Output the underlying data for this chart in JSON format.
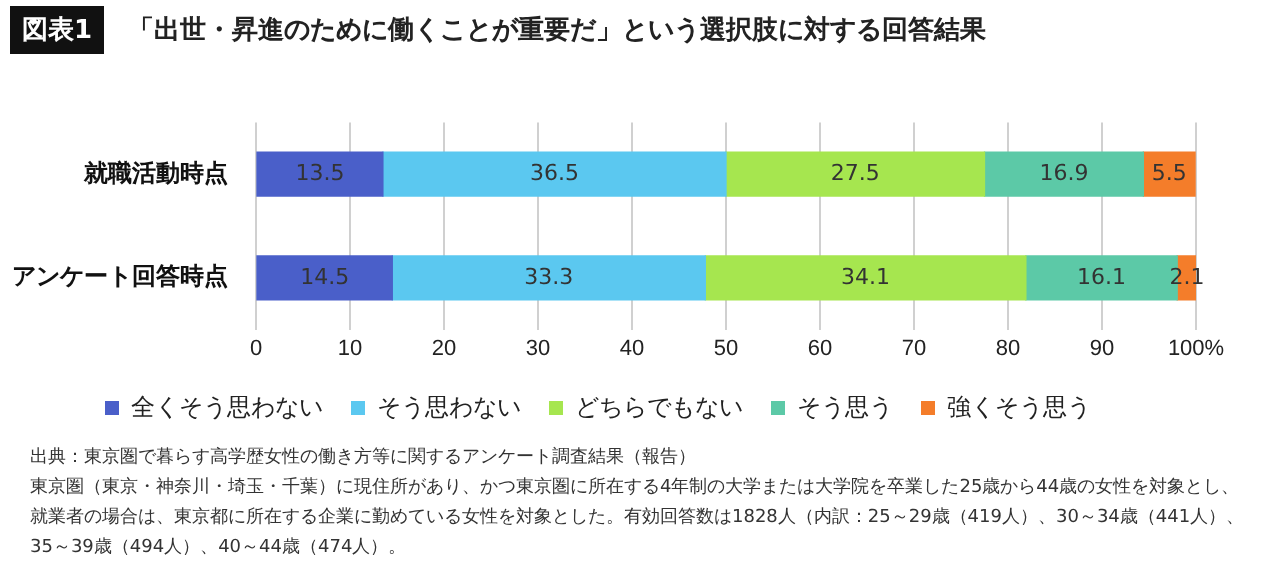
{
  "chart_data": {
    "type": "bar",
    "orientation": "horizontal",
    "stacked": true,
    "title": "「出世・昇進のために働くことが重要だ」という選択肢に対する回答結果",
    "categories": [
      "就職活動時点",
      "アンケート回答時点"
    ],
    "series": [
      {
        "name": "全くそう思わない",
        "color": "#4a5fc9",
        "values": [
          13.5,
          14.5
        ]
      },
      {
        "name": "そう思わない",
        "color": "#5bc8f0",
        "values": [
          36.5,
          33.3
        ]
      },
      {
        "name": "どちらでもない",
        "color": "#a6e64f",
        "values": [
          27.5,
          34.1
        ]
      },
      {
        "name": "そう思う",
        "color": "#5cc9a7",
        "values": [
          16.9,
          16.1
        ]
      },
      {
        "name": "強くそう思う",
        "color": "#f47d2a",
        "values": [
          5.5,
          2.1
        ]
      }
    ],
    "xlim": [
      0,
      100
    ],
    "xticks": [
      0,
      10,
      20,
      30,
      40,
      50,
      60,
      70,
      80,
      90,
      {
        "value": 100,
        "label": "100%"
      }
    ],
    "grid": "x",
    "legend": "bottom",
    "data_labels": true,
    "annotations": [
      "図表1",
      "出典：東京圏で暮らす高学歴女性の働き方等に関するアンケート調査結果（報告）",
      "東京圏（東京・神奈川・埼玉・千葉）に現住所があり、かつ東京圏に所在する4年制の大学または大学院を卒業した25歳から44歳の女性を対象とし、就業者の場合は、東京都に所在する企業に勤めている女性を対象とした。有効回答数は1828人（内訳：25～29歳（419人）、30～34歳（441人）、35～39歳（494人）、40～44歳（474人）。"
    ]
  }
}
